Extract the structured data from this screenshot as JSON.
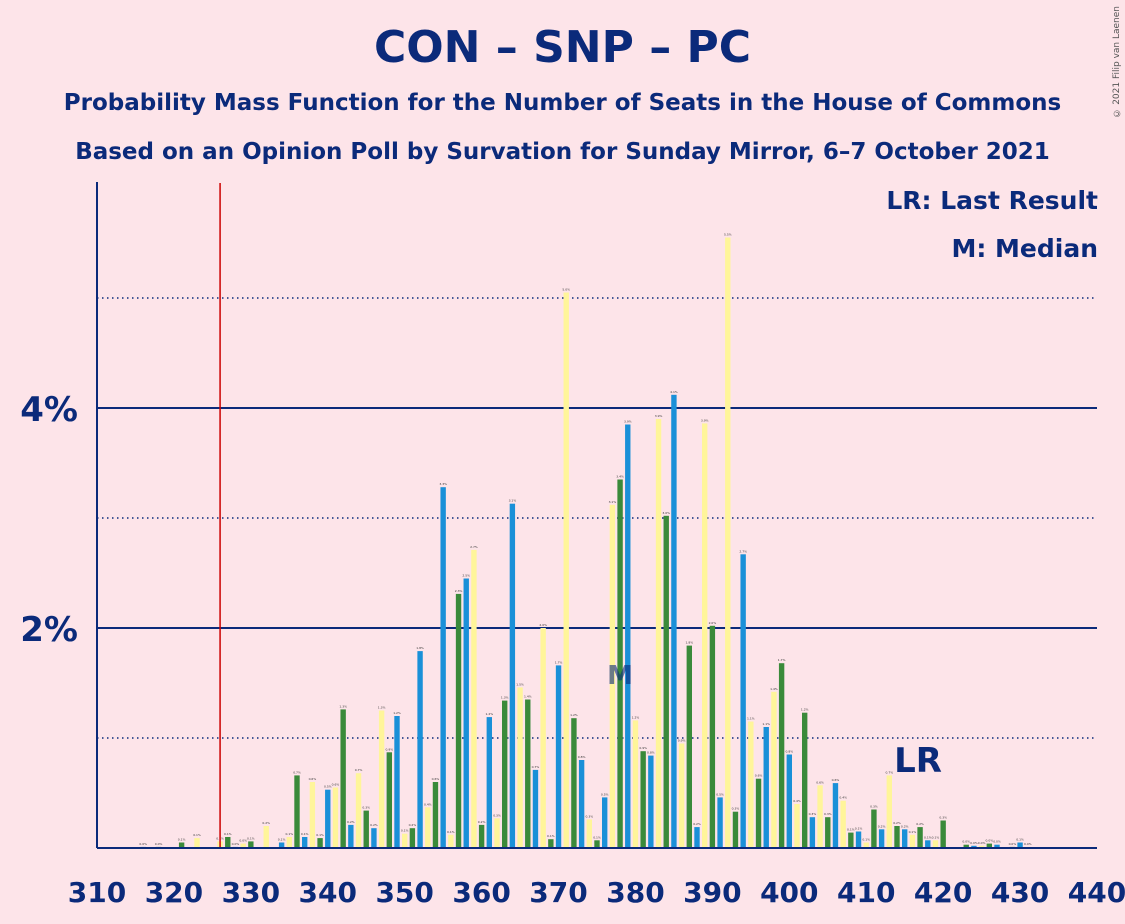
{
  "title": "CON – SNP – PC",
  "subtitle": "Probability Mass Function for the Number of Seats in the House of Commons",
  "subtitle2": "Based on an Opinion Poll by Survation for Sunday Mirror, 6–7 October 2021",
  "legend": {
    "lr": "LR: Last Result",
    "m": "M: Median"
  },
  "copyright": "© 2021 Filip van Laenen",
  "colors": {
    "background": "#fde4e9",
    "text": "#0b2a7a",
    "green": "#3a8a3a",
    "blue": "#1a90d8",
    "yellow": "#fff59a",
    "lastResult": "#cc0000"
  },
  "chart_data": {
    "type": "bar",
    "xlabel": "",
    "ylabel": "",
    "xlim": [
      310,
      440
    ],
    "ylim": [
      0,
      6
    ],
    "y_ticks": [
      "2%",
      "4%"
    ],
    "x_ticks": [
      310,
      320,
      330,
      340,
      350,
      360,
      370,
      380,
      390,
      400,
      410,
      420,
      430,
      440
    ],
    "last_result_seat": 326,
    "last_result_label": "LR",
    "median_seat": 378,
    "median_label": "M",
    "series": [
      {
        "x": [
          310,
          311,
          312,
          313,
          314,
          315,
          316,
          317,
          318,
          319,
          320,
          321,
          322,
          323,
          324,
          325,
          326,
          327,
          328,
          329,
          330,
          331,
          332,
          333,
          334,
          335,
          336,
          337,
          338,
          339,
          340,
          341,
          342,
          343,
          344,
          345,
          346,
          347,
          348,
          349,
          350,
          351,
          352,
          353,
          354,
          355,
          356,
          357,
          358,
          359,
          360,
          361,
          362,
          363,
          364,
          365,
          366,
          367,
          368,
          369,
          370,
          371,
          372,
          373,
          374,
          375,
          376,
          377,
          378,
          379,
          380,
          381,
          382,
          383,
          384,
          385,
          386,
          387,
          388,
          389,
          390,
          391,
          392,
          393,
          394,
          395,
          396,
          397,
          398,
          399,
          400,
          401,
          402,
          403,
          404,
          405,
          406,
          407,
          408,
          409,
          410,
          411,
          412,
          413,
          414,
          415,
          416,
          417,
          418,
          419,
          420,
          421,
          422,
          423,
          424,
          425,
          426,
          427,
          428,
          429,
          430,
          431,
          432,
          433,
          434,
          435,
          436,
          437,
          438,
          439
        ],
        "values": [
          0,
          0,
          0,
          0,
          0,
          0,
          0.01,
          0,
          0.01,
          0,
          0,
          0.05,
          0,
          0.09,
          0,
          0,
          0.06,
          0.1,
          0.01,
          0.04,
          0.06,
          0,
          0.2,
          0,
          0.05,
          0.1,
          0.66,
          0.1,
          0.6,
          0.09,
          0.53,
          0.55,
          1.26,
          0.21,
          0.68,
          0.34,
          0.18,
          1.25,
          0.87,
          1.2,
          0.13,
          0.18,
          1.79,
          0.37,
          0.6,
          3.28,
          0.12,
          2.31,
          2.45,
          2.71,
          0.21,
          1.19,
          0.27,
          1.34,
          3.13,
          1.46,
          1.35,
          0.71,
          2,
          0.08,
          1.66,
          5.05,
          1.18,
          0.8,
          0.26,
          0.07,
          0.46,
          3.12,
          3.35,
          3.85,
          1.16,
          0.88,
          0.84,
          3.9,
          3.02,
          4.12,
          0.95,
          1.84,
          0.19,
          3.86,
          2.02,
          0.46,
          5.55,
          0.33,
          2.67,
          1.15,
          0.63,
          1.1,
          1.42,
          1.68,
          0.85,
          0.4,
          1.23,
          0.28,
          0.57,
          0.28,
          0.59,
          0.43,
          0.14,
          0.15,
          0.05,
          0.35,
          0.17,
          0.66,
          0.2,
          0.17,
          0.12,
          0.19,
          0.07,
          0.07,
          0.25,
          0,
          0,
          0.03,
          0.02,
          0.02,
          0.04,
          0.03,
          0,
          0.01,
          0.05,
          0.01,
          0,
          0,
          0,
          0,
          0,
          0,
          0,
          0
        ]
      }
    ]
  }
}
